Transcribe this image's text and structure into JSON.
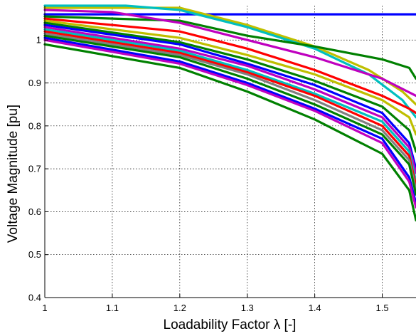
{
  "chart_data": {
    "type": "line",
    "title": "",
    "xlabel": "Loadability Factor λ [-]",
    "ylabel": "Voltage Magnitude [pu]",
    "xlim": [
      1,
      1.55
    ],
    "ylim": [
      0.4,
      1.08
    ],
    "xticks": [
      1,
      1.1,
      1.2,
      1.3,
      1.4,
      1.5
    ],
    "yticks": [
      0.4,
      0.5,
      0.6,
      0.7,
      0.8,
      0.9,
      1
    ],
    "grid": true,
    "legend": "none",
    "series": [
      {
        "color": "#0000ff",
        "points": [
          [
            1,
            1.06
          ],
          [
            1.55,
            1.06
          ]
        ]
      },
      {
        "color": "#bfbf00",
        "points": [
          [
            1,
            1.075
          ],
          [
            1.2,
            1.075
          ],
          [
            1.3,
            1.035
          ],
          [
            1.4,
            0.985
          ],
          [
            1.48,
            0.93
          ],
          [
            1.53,
            0.88
          ],
          [
            1.55,
            0.85
          ]
        ]
      },
      {
        "color": "#00bfbf",
        "points": [
          [
            1,
            1.08
          ],
          [
            1.12,
            1.08
          ],
          [
            1.2,
            1.07
          ],
          [
            1.3,
            1.03
          ],
          [
            1.4,
            0.98
          ],
          [
            1.48,
            0.92
          ],
          [
            1.53,
            0.86
          ],
          [
            1.55,
            0.82
          ]
        ]
      },
      {
        "color": "#008000",
        "points": [
          [
            1,
            1.055
          ],
          [
            1.2,
            1.045
          ],
          [
            1.3,
            1.01
          ],
          [
            1.4,
            0.985
          ],
          [
            1.5,
            0.955
          ],
          [
            1.54,
            0.935
          ],
          [
            1.55,
            0.91
          ]
        ]
      },
      {
        "color": "#bf00bf",
        "points": [
          [
            1,
            1.07
          ],
          [
            1.1,
            1.065
          ],
          [
            1.2,
            1.04
          ],
          [
            1.3,
            1.0
          ],
          [
            1.4,
            0.96
          ],
          [
            1.5,
            0.91
          ],
          [
            1.55,
            0.87
          ]
        ]
      },
      {
        "color": "#ff0000",
        "points": [
          [
            1,
            1.05
          ],
          [
            1.2,
            1.02
          ],
          [
            1.3,
            0.98
          ],
          [
            1.4,
            0.93
          ],
          [
            1.5,
            0.87
          ],
          [
            1.54,
            0.84
          ],
          [
            1.55,
            0.83
          ]
        ]
      },
      {
        "color": "#bfbf00",
        "points": [
          [
            1,
            1.045
          ],
          [
            1.2,
            1.005
          ],
          [
            1.3,
            0.965
          ],
          [
            1.4,
            0.92
          ],
          [
            1.5,
            0.86
          ],
          [
            1.54,
            0.82
          ],
          [
            1.55,
            0.78
          ]
        ]
      },
      {
        "color": "#008000",
        "points": [
          [
            1,
            1.04
          ],
          [
            1.2,
            0.995
          ],
          [
            1.3,
            0.955
          ],
          [
            1.4,
            0.905
          ],
          [
            1.5,
            0.845
          ],
          [
            1.54,
            0.79
          ],
          [
            1.55,
            0.74
          ]
        ]
      },
      {
        "color": "#0000ff",
        "points": [
          [
            1,
            1.035
          ],
          [
            1.2,
            0.99
          ],
          [
            1.3,
            0.945
          ],
          [
            1.4,
            0.895
          ],
          [
            1.5,
            0.83
          ],
          [
            1.54,
            0.76
          ],
          [
            1.55,
            0.7
          ]
        ]
      },
      {
        "color": "#bf00bf",
        "points": [
          [
            1,
            1.03
          ],
          [
            1.2,
            0.98
          ],
          [
            1.3,
            0.94
          ],
          [
            1.4,
            0.885
          ],
          [
            1.5,
            0.82
          ],
          [
            1.54,
            0.75
          ],
          [
            1.55,
            0.69
          ]
        ]
      },
      {
        "color": "#00bfbf",
        "points": [
          [
            1,
            1.025
          ],
          [
            1.2,
            0.975
          ],
          [
            1.3,
            0.93
          ],
          [
            1.4,
            0.875
          ],
          [
            1.5,
            0.81
          ],
          [
            1.54,
            0.74
          ],
          [
            1.55,
            0.67
          ]
        ]
      },
      {
        "color": "#ff0000",
        "points": [
          [
            1,
            1.02
          ],
          [
            1.2,
            0.97
          ],
          [
            1.3,
            0.925
          ],
          [
            1.4,
            0.87
          ],
          [
            1.5,
            0.8
          ],
          [
            1.54,
            0.73
          ],
          [
            1.55,
            0.66
          ]
        ]
      },
      {
        "color": "#808080",
        "points": [
          [
            1,
            1.015
          ],
          [
            1.2,
            0.965
          ],
          [
            1.3,
            0.92
          ],
          [
            1.4,
            0.86
          ],
          [
            1.5,
            0.79
          ],
          [
            1.54,
            0.72
          ],
          [
            1.55,
            0.65
          ]
        ]
      },
      {
        "color": "#008000",
        "points": [
          [
            1,
            1.01
          ],
          [
            1.2,
            0.96
          ],
          [
            1.3,
            0.91
          ],
          [
            1.4,
            0.85
          ],
          [
            1.5,
            0.78
          ],
          [
            1.54,
            0.71
          ],
          [
            1.55,
            0.64
          ]
        ]
      },
      {
        "color": "#0000ff",
        "points": [
          [
            1,
            1.005
          ],
          [
            1.2,
            0.95
          ],
          [
            1.3,
            0.9
          ],
          [
            1.4,
            0.84
          ],
          [
            1.5,
            0.77
          ],
          [
            1.54,
            0.68
          ],
          [
            1.55,
            0.62
          ]
        ]
      },
      {
        "color": "#bf00bf",
        "points": [
          [
            1,
            1.0
          ],
          [
            1.2,
            0.945
          ],
          [
            1.3,
            0.895
          ],
          [
            1.4,
            0.835
          ],
          [
            1.5,
            0.76
          ],
          [
            1.54,
            0.67
          ],
          [
            1.55,
            0.61
          ]
        ]
      },
      {
        "color": "#008000",
        "points": [
          [
            1,
            0.99
          ],
          [
            1.2,
            0.935
          ],
          [
            1.3,
            0.88
          ],
          [
            1.4,
            0.815
          ],
          [
            1.5,
            0.735
          ],
          [
            1.54,
            0.65
          ],
          [
            1.55,
            0.58
          ]
        ]
      }
    ]
  }
}
